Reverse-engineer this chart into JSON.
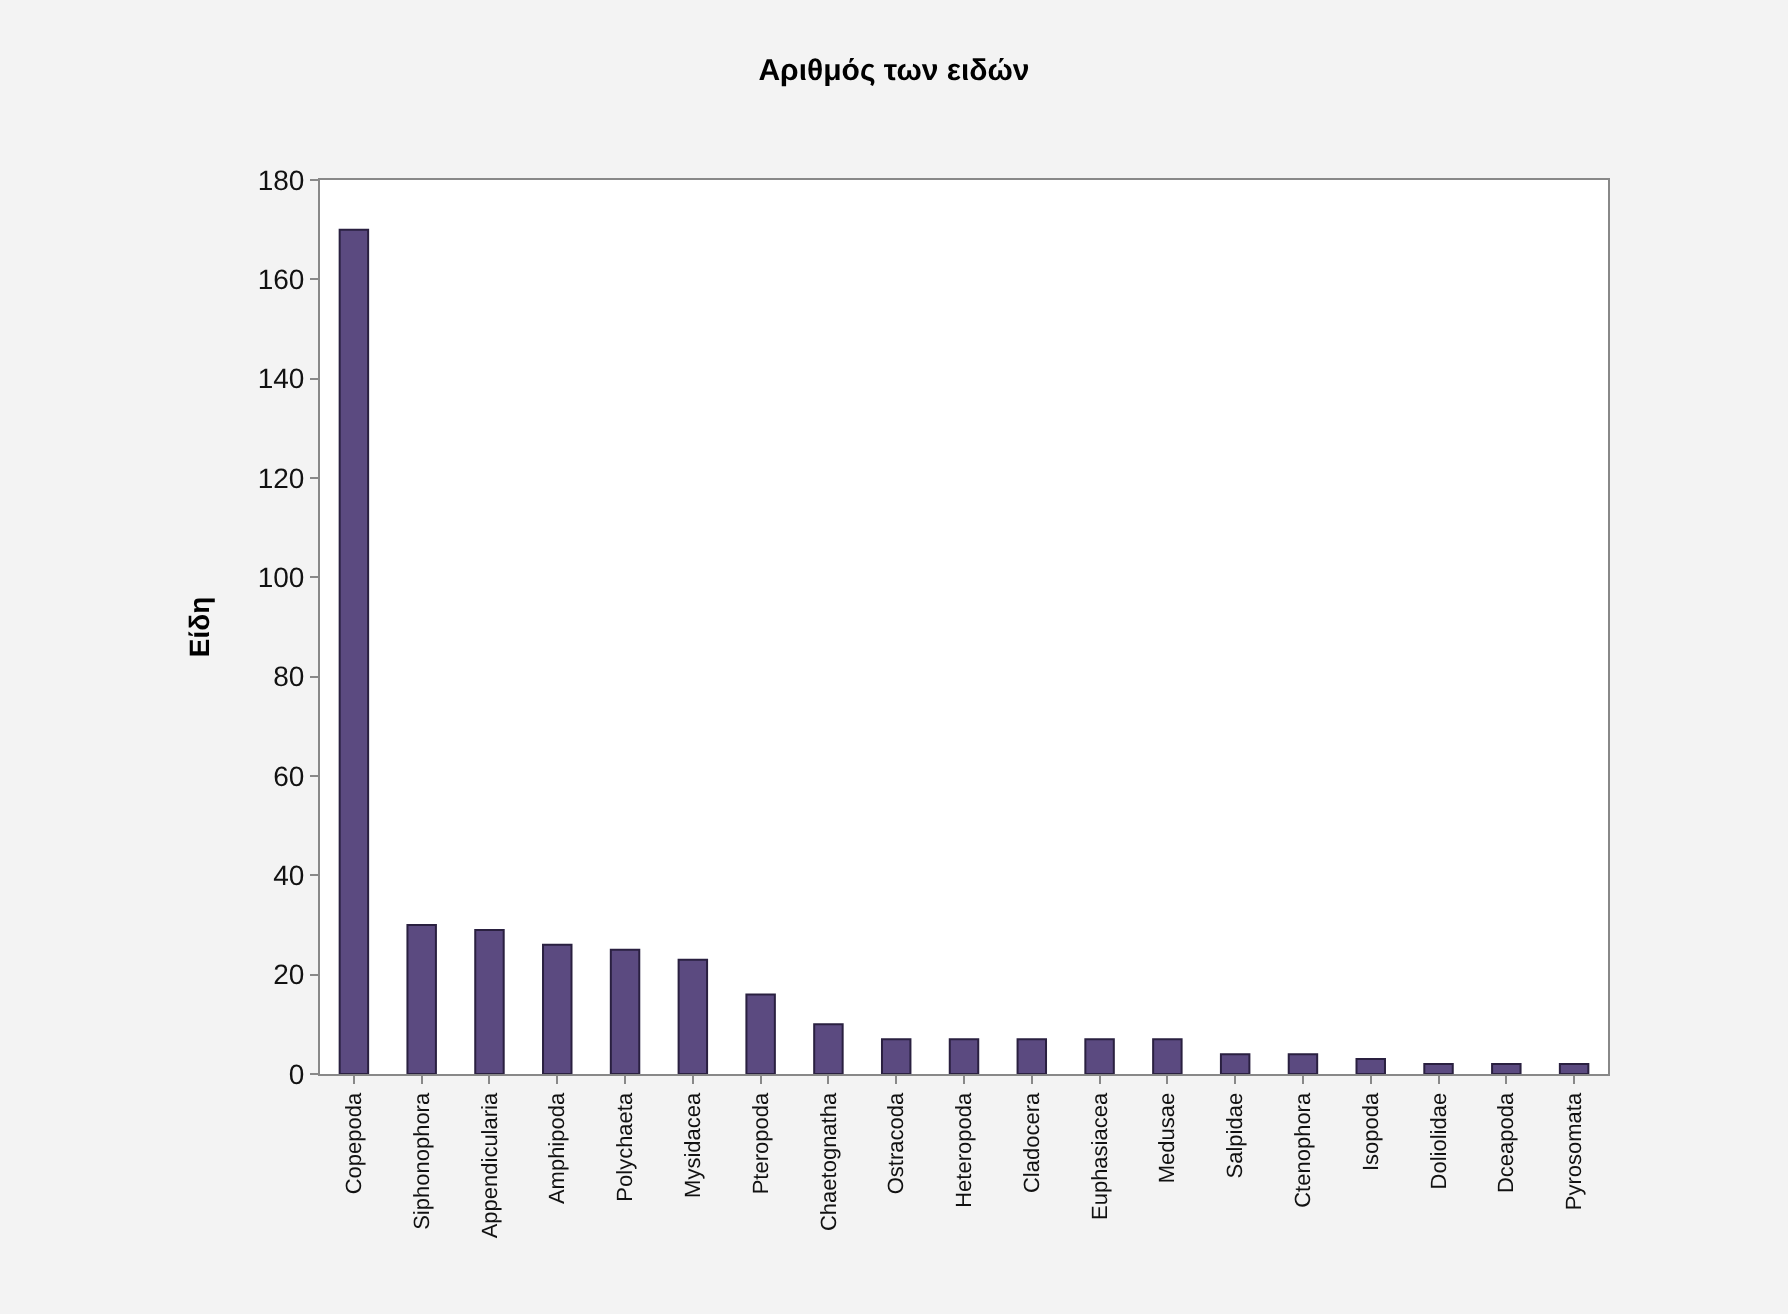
{
  "chart_data": {
    "type": "bar",
    "title": "Αριθμός των ειδών",
    "ylabel": "Είδη",
    "categories": [
      "Copepoda",
      "Siphonophora",
      "Appendicularia",
      "Amphipoda",
      "Polychaeta",
      "Mysidacea",
      "Pteropoda",
      "Chaetognatha",
      "Ostracoda",
      "Heteropoda",
      "Cladocera",
      "Euphasiacea",
      "Medusae",
      "Salpidae",
      "Ctenophora",
      "Isopoda",
      "Doliolidae",
      "Dceapoda",
      "Pyrosomata"
    ],
    "values": [
      170,
      30,
      29,
      26,
      25,
      23,
      16,
      10,
      7,
      7,
      7,
      7,
      7,
      4,
      4,
      3,
      2,
      2,
      2
    ],
    "color": "#5b4a80",
    "ylim": [
      0,
      180
    ],
    "yticks": [
      0,
      20,
      40,
      60,
      80,
      100,
      120,
      140,
      160,
      180
    ],
    "grid": false
  }
}
